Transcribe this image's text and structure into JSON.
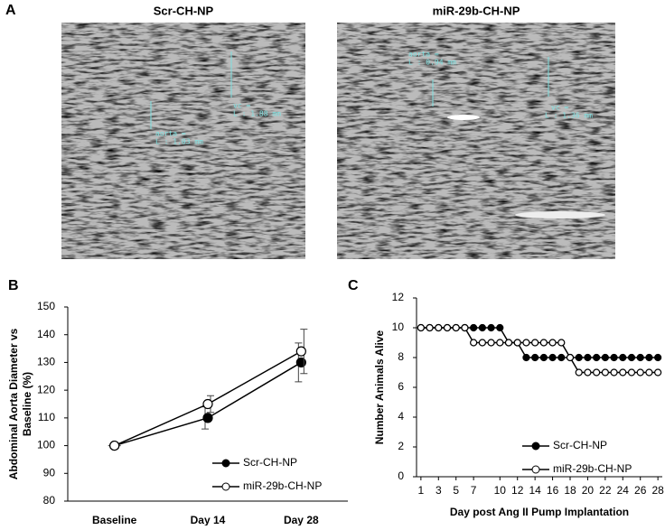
{
  "panels": {
    "labels": [
      "A",
      "B",
      "C"
    ],
    "images": [
      {
        "title": "Scr-CH-NP",
        "annotations": [
          "vc =",
          "L : 1.88 mm",
          "aorta =",
          "L : 1.03 mm"
        ]
      },
      {
        "title": "miR-29b-CH-NP",
        "annotations": [
          "aorta =",
          "L : 0.94 mm",
          "vc =",
          "L : 1.36 mm"
        ]
      }
    ]
  },
  "chart_data": [
    {
      "type": "line",
      "ylabel": [
        "Abdominal Aorta Diameter vs",
        "Baseline (%)"
      ],
      "categories": [
        "Baseline",
        "Day 14",
        "Day 28"
      ],
      "series": [
        {
          "name": "Scr-CH-NP",
          "color": "#000000",
          "marker": "filled",
          "values": [
            100,
            110,
            130
          ],
          "errors": [
            0,
            4,
            7
          ]
        },
        {
          "name": "miR-29b-CH-NP",
          "color": "#000000",
          "marker": "open",
          "values": [
            100,
            115,
            134
          ],
          "errors": [
            0,
            3,
            8
          ]
        }
      ],
      "ylim": [
        80,
        150
      ],
      "yticks": [
        80,
        90,
        100,
        110,
        120,
        130,
        140,
        150
      ],
      "grid": false,
      "legend": "lower right"
    },
    {
      "type": "line",
      "xlabel": "Day post Ang II Pump Implantation",
      "ylabel": "Number Animals Alive",
      "x": [
        1,
        2,
        3,
        4,
        5,
        6,
        7,
        8,
        9,
        10,
        11,
        12,
        13,
        14,
        15,
        16,
        17,
        18,
        19,
        20,
        21,
        22,
        23,
        24,
        25,
        26,
        27,
        28
      ],
      "series": [
        {
          "name": "Scr-CH-NP",
          "color": "#000000",
          "marker": "filled",
          "values": [
            10,
            10,
            10,
            10,
            10,
            10,
            10,
            10,
            10,
            10,
            9,
            9,
            8,
            8,
            8,
            8,
            8,
            8,
            8,
            8,
            8,
            8,
            8,
            8,
            8,
            8,
            8,
            8
          ]
        },
        {
          "name": "miR-29b-CH-NP",
          "color": "#000000",
          "marker": "open",
          "values": [
            10,
            10,
            10,
            10,
            10,
            10,
            9,
            9,
            9,
            9,
            9,
            9,
            9,
            9,
            9,
            9,
            9,
            8,
            7,
            7,
            7,
            7,
            7,
            7,
            7,
            7,
            7,
            7
          ]
        }
      ],
      "xlim": [
        0.5,
        28.5
      ],
      "xticks": [
        1,
        3,
        5,
        7,
        10,
        12,
        14,
        16,
        18,
        20,
        22,
        24,
        26,
        28
      ],
      "ylim": [
        0,
        12
      ],
      "yticks": [
        0,
        2,
        4,
        6,
        8,
        10,
        12
      ],
      "grid": false,
      "legend": "lower right"
    }
  ]
}
